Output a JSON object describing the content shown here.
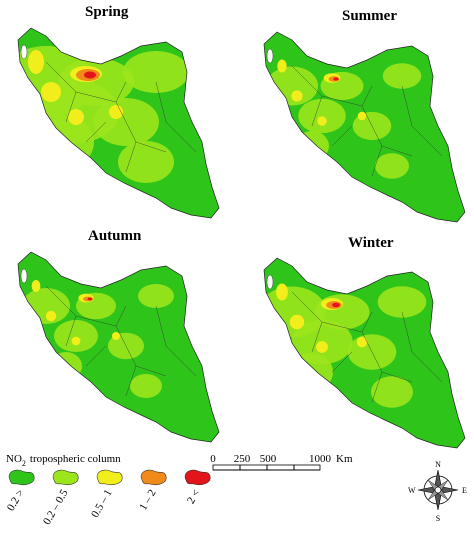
{
  "panels": [
    {
      "title": "Spring"
    },
    {
      "title": "Summer"
    },
    {
      "title": "Autumn"
    },
    {
      "title": "Winter"
    }
  ],
  "legend": {
    "title": {
      "main": "NO",
      "subscript": "2",
      "rest": "tropospheric column"
    },
    "classes": [
      "0.2 >",
      "0.2 – 0.5",
      "0.5 – 1",
      "1 – 2",
      "2 <"
    ]
  },
  "scale_bar": {
    "labels": [
      "0",
      "250",
      "500",
      "1000"
    ],
    "unit": "Km"
  },
  "compass": {
    "north": "N",
    "south": "S",
    "east": "E",
    "west": "W"
  }
}
